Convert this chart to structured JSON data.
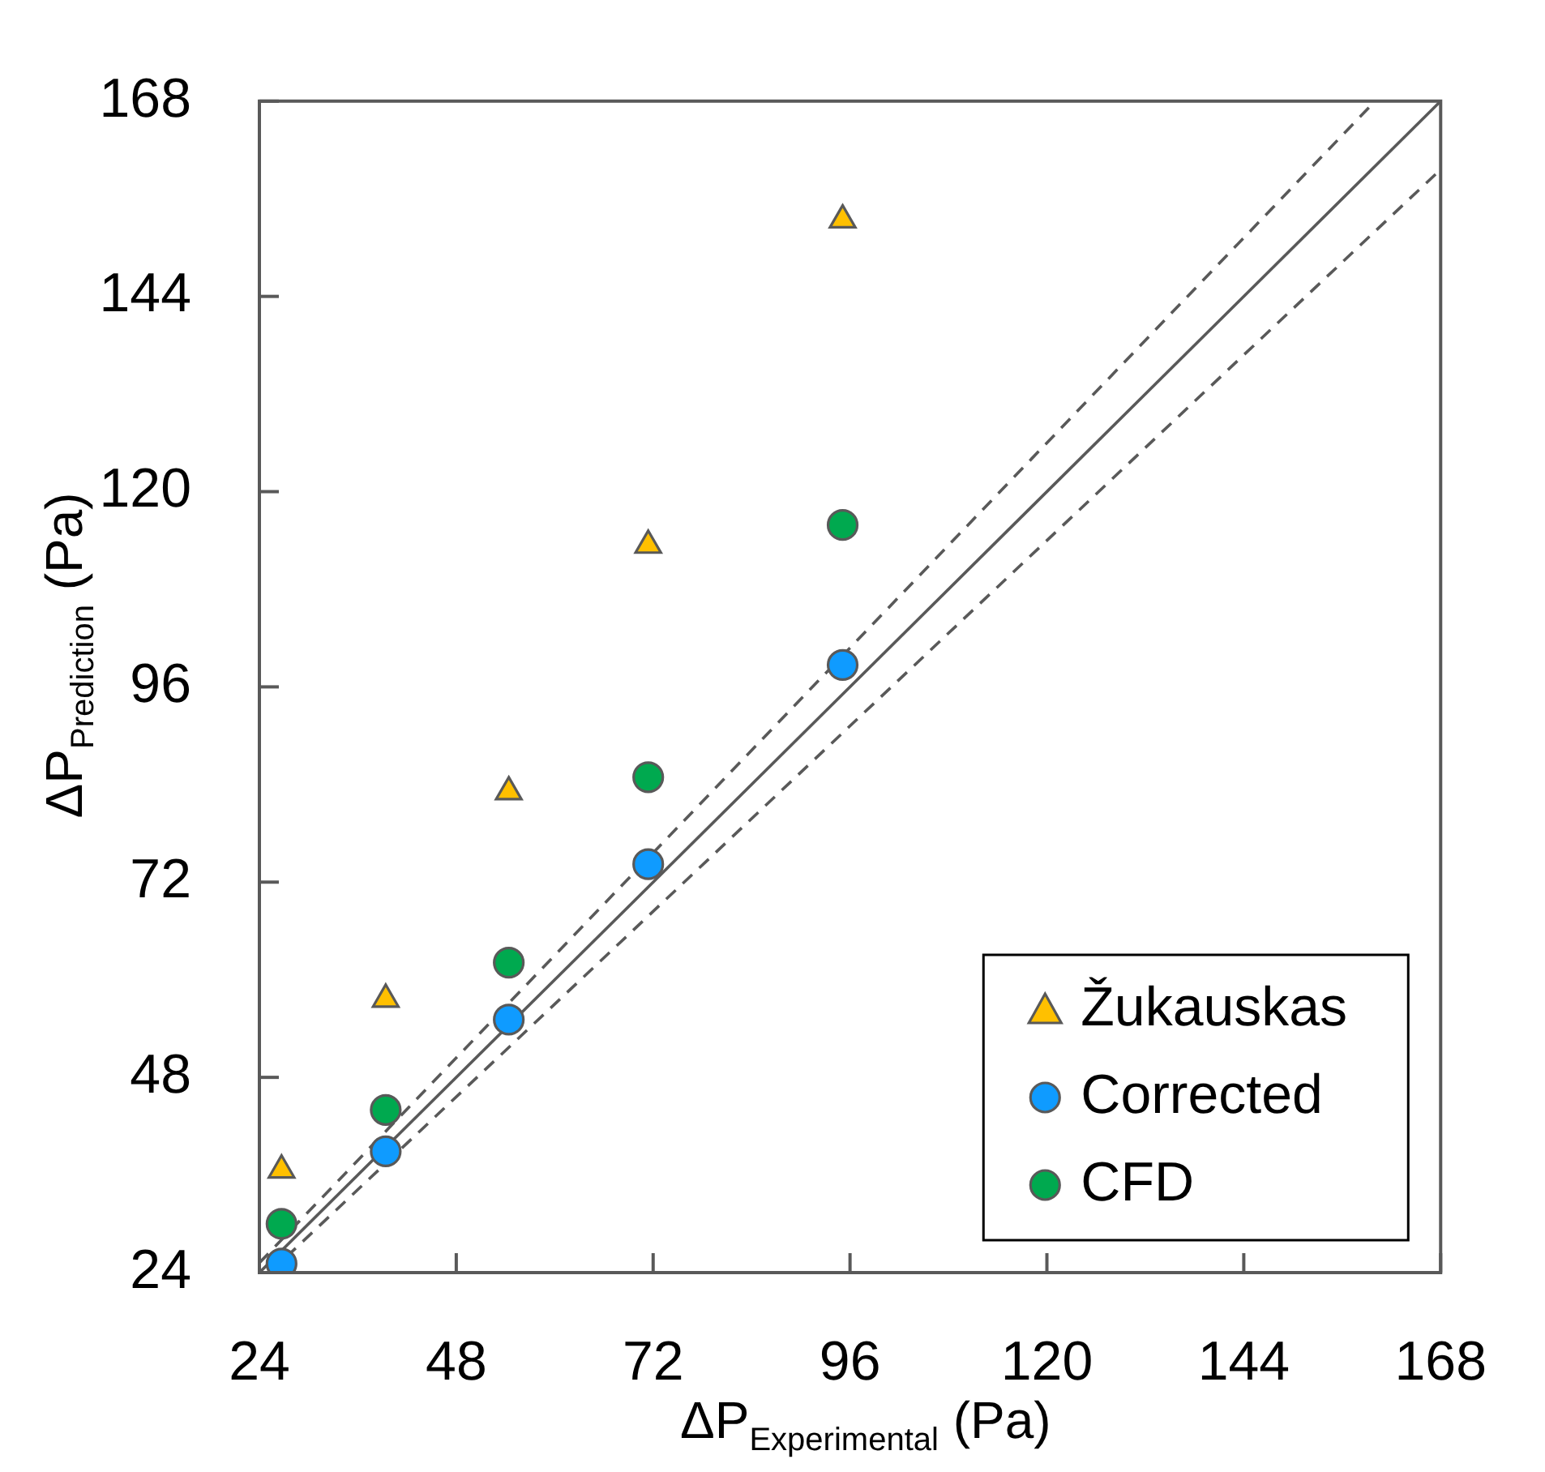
{
  "chart_data": {
    "type": "scatter",
    "xlabel": "ΔP$_{Experimental}$ (Pa)",
    "ylabel": "ΔP$_{Prediction}$ (Pa)",
    "xlim": [
      24,
      168
    ],
    "ylim": [
      24,
      168
    ],
    "xticks": [
      24,
      48,
      72,
      96,
      120,
      144,
      168
    ],
    "yticks": [
      24,
      48,
      72,
      96,
      120,
      144,
      168
    ],
    "legend": "bottom right",
    "series": [
      {
        "name": "Žukauskas",
        "color": "#ffc000",
        "marker": "triangle",
        "x": [
          26.7,
          39.4,
          54.4,
          71.4,
          95.1
        ],
        "values": [
          36.6,
          57.6,
          83.1,
          113.4,
          153.4
        ]
      },
      {
        "name": "Corrected",
        "color": "#0f9bff",
        "marker": "circle",
        "x": [
          26.7,
          39.4,
          54.4,
          71.4,
          95.1
        ],
        "values": [
          25.1,
          38.9,
          55.1,
          74.2,
          98.7
        ]
      },
      {
        "name": "CFD",
        "color": "#00a94f",
        "marker": "circle",
        "x": [
          26.7,
          39.4,
          54.4,
          71.4,
          95.1
        ],
        "values": [
          30.0,
          44.0,
          62.1,
          84.9,
          115.9
        ]
      },
      {
        "type": "line",
        "color": "#595959",
        "line_style": "solid",
        "x": [
          24,
          168
        ],
        "values": [
          24,
          168
        ]
      },
      {
        "type": "line",
        "color": "#595959",
        "line_style": "dashed",
        "x": [
          24,
          160
        ],
        "values": [
          25.2,
          168
        ]
      },
      {
        "type": "line",
        "color": "#595959",
        "line_style": "dashed",
        "x": [
          25.26,
          168
        ],
        "values": [
          24,
          159.6
        ]
      }
    ]
  }
}
